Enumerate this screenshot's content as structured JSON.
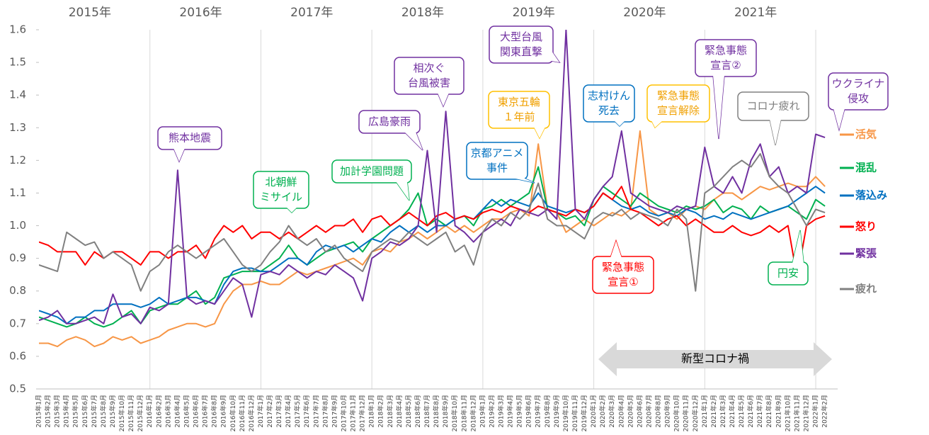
{
  "chart_data": {
    "type": "line",
    "years": [
      "2015年",
      "2016年",
      "2017年",
      "2018年",
      "2019年",
      "2020年",
      "2021年"
    ],
    "categories": [
      "2015年1月",
      "2015年2月",
      "2015年3月",
      "2015年4月",
      "2015年5月",
      "2015年6月",
      "2015年7月",
      "2015年8月",
      "2015年9月",
      "2015年10月",
      "2015年11月",
      "2015年12月",
      "2016年1月",
      "2016年2月",
      "2016年3月",
      "2016年4月",
      "2016年5月",
      "2016年6月",
      "2016年7月",
      "2016年8月",
      "2016年9月",
      "2016年10月",
      "2016年11月",
      "2016年12月",
      "2017年1月",
      "2017年2月",
      "2017年3月",
      "2017年4月",
      "2017年5月",
      "2017年6月",
      "2017年7月",
      "2017年8月",
      "2017年9月",
      "2017年10月",
      "2017年11月",
      "2017年12月",
      "2018年1月",
      "2018年2月",
      "2018年3月",
      "2018年4月",
      "2018年5月",
      "2018年6月",
      "2018年7月",
      "2018年8月",
      "2018年9月",
      "2018年10月",
      "2018年11月",
      "2018年12月",
      "2019年1月",
      "2019年2月",
      "2019年3月",
      "2019年4月",
      "2019年5月",
      "2019年6月",
      "2019年7月",
      "2019年8月",
      "2019年9月",
      "2019年10月",
      "2019年11月",
      "2019年12月",
      "2020年1月",
      "2020年2月",
      "2020年3月",
      "2020年4月",
      "2020年5月",
      "2020年6月",
      "2020年7月",
      "2020年8月",
      "2020年9月",
      "2020年10月",
      "2020年11月",
      "2020年12月",
      "2021年1月",
      "2021年2月",
      "2021年3月",
      "2021年4月",
      "2021年5月",
      "2021年6月",
      "2021年7月",
      "2021年8月",
      "2021年9月",
      "2021年10月",
      "2021年11月",
      "2021年12月",
      "2022年1月",
      "2022年2月"
    ],
    "series": [
      {
        "name": "活気",
        "color": "#f79646",
        "values": [
          0.64,
          0.64,
          0.63,
          0.65,
          0.66,
          0.65,
          0.63,
          0.64,
          0.66,
          0.65,
          0.66,
          0.64,
          0.65,
          0.66,
          0.68,
          0.69,
          0.7,
          0.7,
          0.69,
          0.7,
          0.76,
          0.8,
          0.82,
          0.82,
          0.83,
          0.82,
          0.82,
          0.84,
          0.86,
          0.85,
          0.86,
          0.87,
          0.88,
          0.89,
          0.9,
          0.88,
          0.92,
          0.93,
          0.92,
          0.95,
          0.96,
          0.98,
          0.96,
          0.98,
          1.0,
          0.98,
          1.0,
          0.98,
          1.0,
          1.02,
          1.02,
          1.04,
          1.05,
          1.03,
          1.25,
          1.05,
          1.04,
          0.98,
          1.0,
          1.02,
          1.0,
          1.02,
          1.04,
          1.03,
          1.05,
          1.29,
          1.05,
          1.03,
          1.04,
          1.02,
          1.05,
          1.06,
          1.05,
          1.08,
          1.1,
          1.1,
          1.08,
          1.1,
          1.12,
          1.11,
          1.12,
          1.13,
          1.12,
          1.12,
          1.15,
          1.12
        ]
      },
      {
        "name": "混乱",
        "color": "#00b050",
        "values": [
          0.72,
          0.71,
          0.7,
          0.69,
          0.7,
          0.72,
          0.7,
          0.69,
          0.7,
          0.72,
          0.74,
          0.7,
          0.74,
          0.75,
          0.76,
          0.76,
          0.78,
          0.8,
          0.76,
          0.78,
          0.84,
          0.85,
          0.86,
          0.86,
          0.86,
          0.88,
          0.9,
          0.94,
          0.9,
          0.88,
          0.9,
          0.92,
          0.93,
          0.94,
          0.95,
          0.92,
          0.96,
          0.98,
          1.0,
          1.02,
          1.05,
          1.1,
          1.0,
          1.02,
          1.0,
          1.02,
          1.03,
          1.0,
          1.05,
          1.06,
          1.08,
          1.06,
          1.08,
          1.1,
          1.18,
          1.05,
          1.04,
          1.02,
          1.03,
          1.0,
          1.08,
          1.12,
          1.1,
          1.08,
          1.06,
          1.1,
          1.08,
          1.06,
          1.05,
          1.04,
          1.06,
          1.05,
          1.06,
          1.08,
          1.04,
          1.06,
          1.05,
          1.02,
          1.06,
          1.04,
          1.05,
          1.06,
          1.04,
          1.02,
          1.08,
          1.06
        ]
      },
      {
        "name": "落込み",
        "color": "#0070c0",
        "values": [
          0.74,
          0.73,
          0.72,
          0.7,
          0.72,
          0.72,
          0.74,
          0.74,
          0.76,
          0.76,
          0.76,
          0.75,
          0.76,
          0.78,
          0.76,
          0.77,
          0.78,
          0.78,
          0.77,
          0.76,
          0.82,
          0.86,
          0.87,
          0.87,
          0.86,
          0.86,
          0.88,
          0.9,
          0.9,
          0.88,
          0.92,
          0.94,
          0.93,
          0.94,
          0.92,
          0.94,
          0.96,
          0.95,
          0.98,
          1.0,
          0.98,
          1.0,
          0.98,
          1.0,
          1.0,
          1.02,
          1.03,
          1.02,
          1.05,
          1.08,
          1.06,
          1.08,
          1.07,
          1.06,
          1.1,
          1.06,
          1.05,
          1.04,
          1.05,
          1.04,
          1.06,
          1.1,
          1.08,
          1.06,
          1.05,
          1.06,
          1.04,
          1.03,
          1.04,
          1.03,
          1.05,
          1.04,
          1.02,
          1.03,
          1.02,
          1.04,
          1.03,
          1.02,
          1.03,
          1.04,
          1.05,
          1.06,
          1.08,
          1.1,
          1.12,
          1.1
        ]
      },
      {
        "name": "怒り",
        "color": "#ff0000",
        "values": [
          0.95,
          0.94,
          0.92,
          0.92,
          0.92,
          0.88,
          0.92,
          0.9,
          0.92,
          0.92,
          0.9,
          0.88,
          0.92,
          0.92,
          0.9,
          0.92,
          0.92,
          0.94,
          0.9,
          0.96,
          1.0,
          0.98,
          1.0,
          0.96,
          0.98,
          0.98,
          0.96,
          0.98,
          0.96,
          0.98,
          1.0,
          0.98,
          1.0,
          1.0,
          1.02,
          0.98,
          1.02,
          1.03,
          1.0,
          1.02,
          1.04,
          1.02,
          1.0,
          1.03,
          1.04,
          1.02,
          1.03,
          1.02,
          1.04,
          1.05,
          1.04,
          1.06,
          1.05,
          1.04,
          1.06,
          1.05,
          1.04,
          1.03,
          1.05,
          1.04,
          1.06,
          1.1,
          1.08,
          1.12,
          1.05,
          1.04,
          1.02,
          1.0,
          1.02,
          1.03,
          1.0,
          1.02,
          1.0,
          0.98,
          0.98,
          1.0,
          0.98,
          0.97,
          0.98,
          1.0,
          0.98,
          1.0,
          0.84,
          1.0,
          1.02,
          1.03
        ]
      },
      {
        "name": "緊張",
        "color": "#7030a0",
        "values": [
          0.71,
          0.72,
          0.74,
          0.7,
          0.7,
          0.71,
          0.72,
          0.7,
          0.79,
          0.72,
          0.73,
          0.7,
          0.75,
          0.74,
          0.76,
          1.17,
          0.78,
          0.76,
          0.77,
          0.76,
          0.8,
          0.84,
          0.82,
          0.72,
          0.85,
          0.86,
          0.85,
          0.88,
          0.86,
          0.84,
          0.86,
          0.85,
          0.88,
          0.86,
          0.84,
          0.77,
          0.9,
          0.92,
          0.95,
          0.94,
          0.96,
          1.0,
          1.23,
          0.98,
          1.35,
          1.0,
          0.98,
          0.95,
          0.98,
          1.0,
          1.02,
          1.0,
          1.05,
          1.04,
          1.03,
          1.05,
          1.02,
          1.6,
          1.05,
          1.02,
          1.08,
          1.12,
          1.15,
          1.29,
          1.1,
          1.08,
          1.06,
          1.05,
          1.04,
          1.06,
          1.05,
          1.06,
          1.24,
          1.12,
          1.1,
          1.15,
          1.1,
          1.2,
          1.25,
          1.15,
          1.18,
          1.1,
          1.12,
          1.1,
          1.28,
          1.27
        ]
      },
      {
        "name": "疲れ",
        "color": "#808080",
        "values": [
          0.88,
          0.87,
          0.86,
          0.98,
          0.96,
          0.94,
          0.95,
          0.9,
          0.92,
          0.9,
          0.88,
          0.8,
          0.86,
          0.88,
          0.92,
          0.94,
          0.92,
          0.9,
          0.92,
          0.94,
          0.96,
          0.92,
          0.88,
          0.86,
          0.88,
          0.92,
          0.95,
          1.0,
          0.96,
          0.94,
          0.96,
          0.92,
          0.94,
          0.9,
          0.88,
          0.86,
          0.92,
          0.94,
          0.96,
          0.95,
          0.98,
          0.96,
          0.94,
          0.96,
          0.98,
          0.92,
          0.94,
          0.88,
          0.98,
          1.02,
          1.0,
          1.04,
          1.02,
          1.05,
          1.13,
          1.02,
          1.0,
          1.0,
          0.98,
          0.96,
          1.02,
          1.04,
          1.03,
          1.05,
          1.02,
          1.04,
          1.03,
          1.02,
          1.0,
          1.05,
          1.02,
          0.8,
          1.1,
          1.12,
          1.15,
          1.18,
          1.2,
          1.18,
          1.22,
          1.15,
          1.12,
          1.1,
          1.05,
          1.0,
          1.05,
          1.04
        ]
      }
    ],
    "ylim": [
      0.5,
      1.6
    ],
    "yticks": [
      0.5,
      0.6,
      0.7,
      0.8,
      0.9,
      {
        "value": 1,
        "label": "1.0"
      },
      1.1,
      1.2,
      1.3,
      1.4,
      1.5,
      1.6
    ],
    "xgrid": true,
    "legend": "right",
    "annotations": [
      {
        "text": [
          "熊本地震"
        ],
        "color": "#7030a0"
      },
      {
        "text": [
          "北朝鮮",
          "ミサイル"
        ],
        "color": "#00b050"
      },
      {
        "text": [
          "加計学園問題"
        ],
        "color": "#00b050"
      },
      {
        "text": [
          "広島豪雨"
        ],
        "color": "#7030a0"
      },
      {
        "text": [
          "相次ぐ",
          "台風被害"
        ],
        "color": "#7030a0"
      },
      {
        "text": [
          "東京五輪",
          "１年前"
        ],
        "color": "#ffc000"
      },
      {
        "text": [
          "京都アニメ",
          "事件"
        ],
        "color": "#0070c0"
      },
      {
        "text": [
          "大型台風",
          "関東直撃"
        ],
        "color": "#7030a0"
      },
      {
        "text": [
          "志村けん",
          "死去"
        ],
        "color": "#0070c0"
      },
      {
        "text": [
          "緊急事態",
          "宣言解除"
        ],
        "color": "#ffc000"
      },
      {
        "text": [
          "緊急事態",
          "宣言①"
        ],
        "color": "#ff0000"
      },
      {
        "text": [
          "緊急事態",
          "宣言②"
        ],
        "color": "#7030a0"
      },
      {
        "text": [
          "コロナ疲れ"
        ],
        "color": "#808080"
      },
      {
        "text": [
          "ウクライナ",
          "侵攻"
        ],
        "color": "#7030a0"
      },
      {
        "text": [
          "円安"
        ],
        "color": "#00b050"
      }
    ],
    "period_label": "新型コロナ禍"
  }
}
